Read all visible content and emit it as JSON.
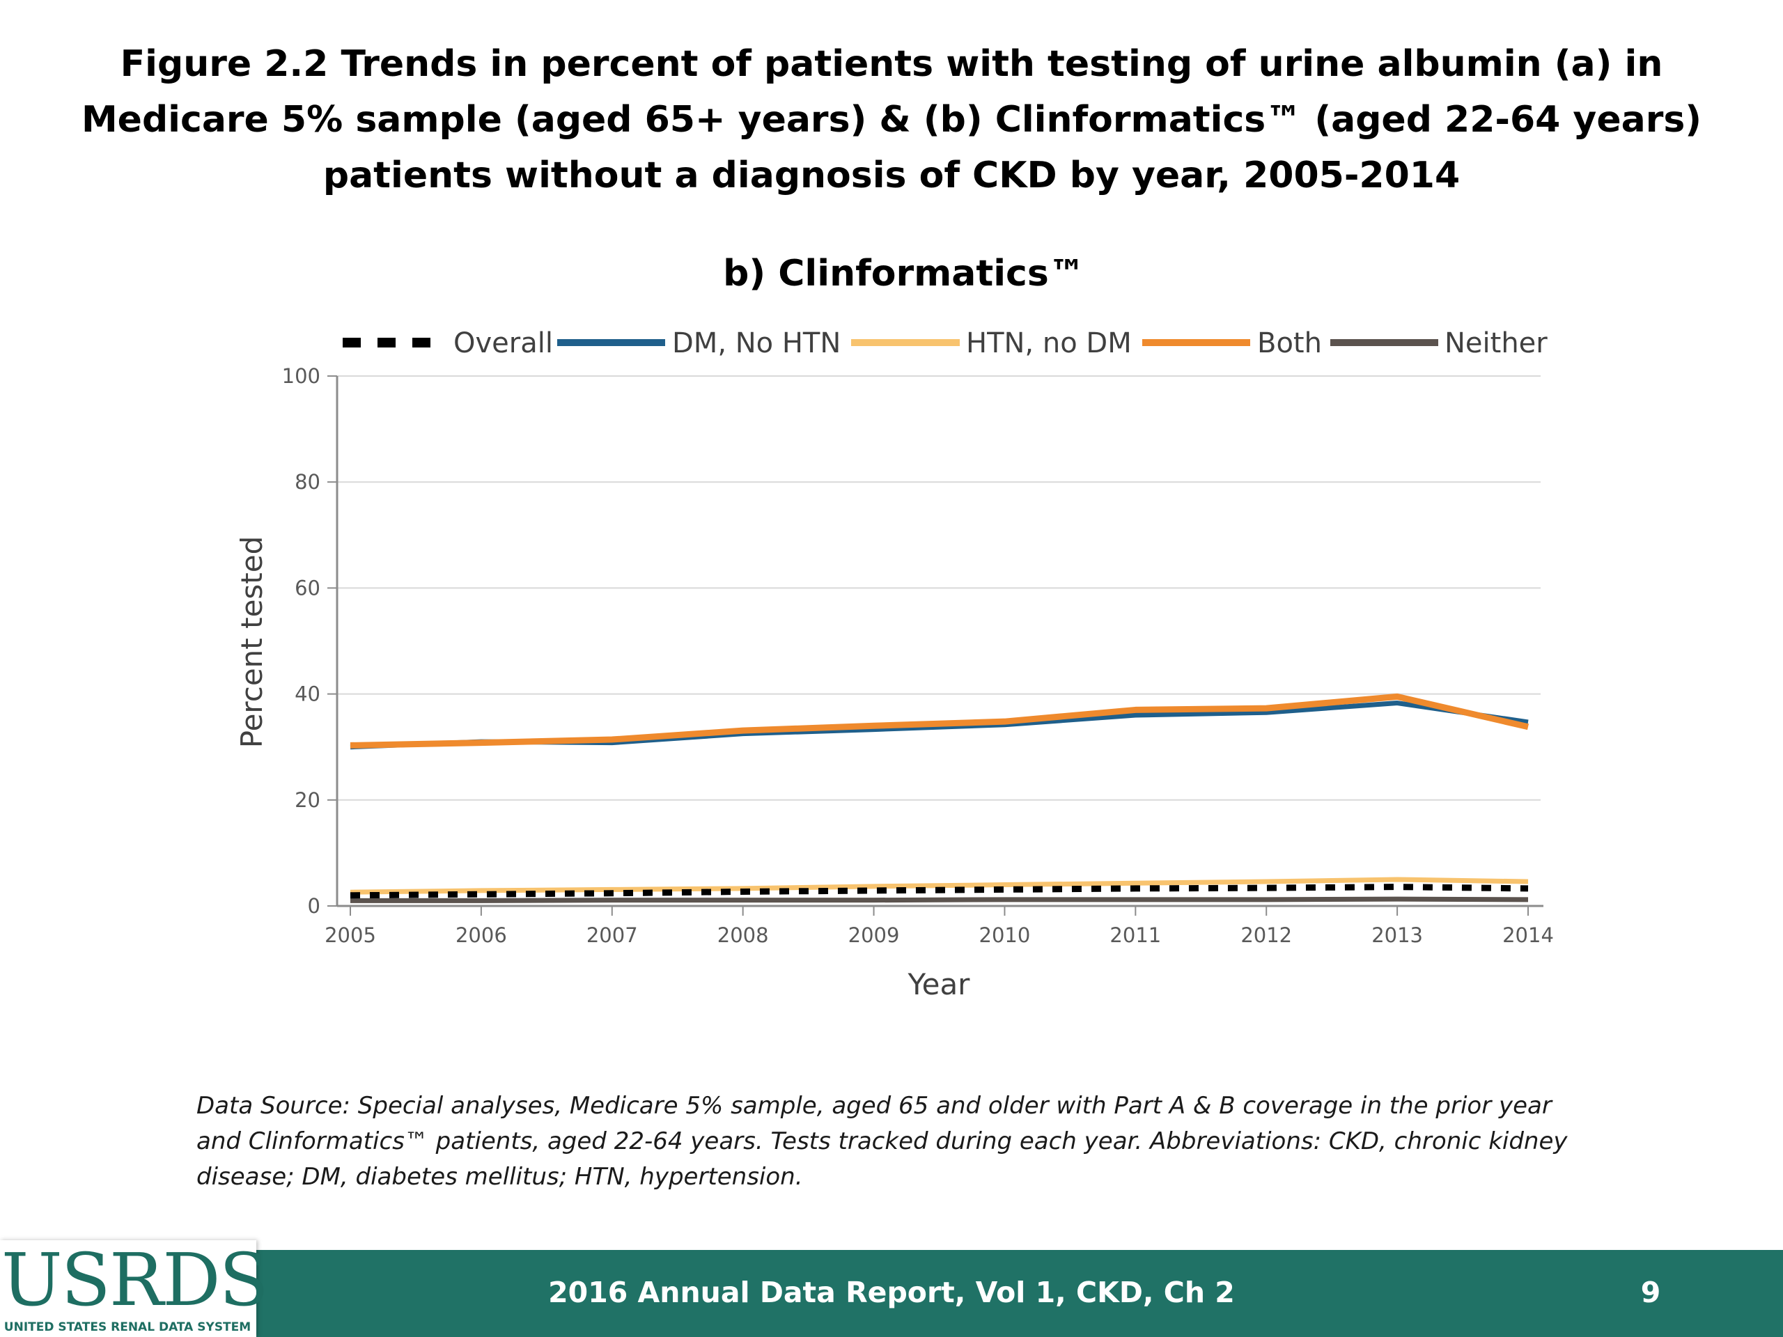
{
  "slide": {
    "title": "Figure 2.2  Trends in percent of patients with testing of urine albumin (a) in Medicare 5% sample (aged 65+ years) & (b) Clinformatics™ (aged 22-64 years) patients without a diagnosis of CKD by year, 2005-2014",
    "source_note": "Data Source: Special analyses, Medicare 5% sample, aged 65 and older with Part A & B coverage in the prior year and Clinformatics™ patients, aged 22-64 years. Tests tracked during each year. Abbreviations: CKD, chronic kidney disease; DM, diabetes mellitus; HTN, hypertension.",
    "footer_text": "2016 Annual Data Report, Vol 1, CKD, Ch 2",
    "page_number": "9",
    "logo_text": "USRDS",
    "logo_subtext": "UNITED STATES RENAL DATA SYSTEM"
  },
  "colors": {
    "footer_bar": "#207266",
    "logo_text": "#1e6e62"
  },
  "chart_data": {
    "type": "line",
    "title": "b)  Clinformatics™",
    "xlabel": "Year",
    "ylabel": "Percent tested",
    "x": [
      2005,
      2006,
      2007,
      2008,
      2009,
      2010,
      2011,
      2012,
      2013,
      2014
    ],
    "ylim": [
      0,
      100
    ],
    "yticks": [
      0,
      20,
      40,
      60,
      80,
      100
    ],
    "grid": true,
    "legend_position": "top",
    "series": [
      {
        "name": "Overall",
        "color": "#000000",
        "style": "dashed",
        "values": [
          2.0,
          2.2,
          2.4,
          2.7,
          2.9,
          3.1,
          3.3,
          3.4,
          3.6,
          3.3
        ]
      },
      {
        "name": "DM, No HTN",
        "color": "#1f5f8b",
        "style": "solid",
        "values": [
          30.0,
          31.0,
          30.8,
          32.5,
          33.3,
          34.2,
          36.0,
          36.5,
          38.3,
          34.7
        ]
      },
      {
        "name": "HTN, no DM",
        "color": "#f8c36e",
        "style": "solid",
        "values": [
          2.6,
          2.9,
          3.1,
          3.3,
          3.7,
          4.0,
          4.3,
          4.6,
          5.0,
          4.6
        ]
      },
      {
        "name": "Both",
        "color": "#ef8a2d",
        "style": "solid",
        "values": [
          30.3,
          30.8,
          31.4,
          33.1,
          34.0,
          34.8,
          37.0,
          37.3,
          39.5,
          33.8
        ]
      },
      {
        "name": "Neither",
        "color": "#5b534e",
        "style": "solid",
        "values": [
          1.0,
          1.0,
          1.1,
          1.1,
          1.1,
          1.2,
          1.2,
          1.2,
          1.3,
          1.2
        ]
      }
    ]
  }
}
